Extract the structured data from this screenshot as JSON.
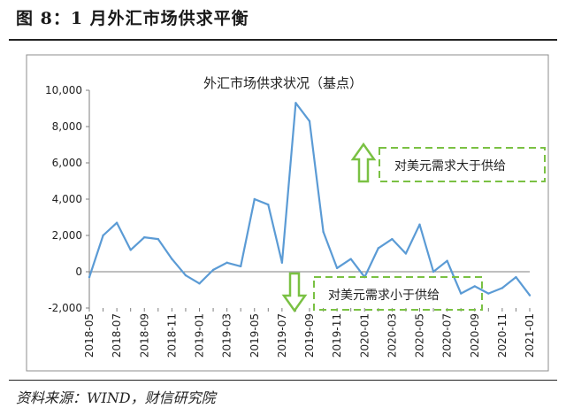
{
  "figure": {
    "title": "图 8：1 月外汇市场供求平衡",
    "source": "资料来源：WIND，财信研究院"
  },
  "colors": {
    "line": "#5b9bd5",
    "annotation": "#7ac143",
    "frame": "#8c8c8c"
  },
  "chart_data": {
    "type": "line",
    "title": "外汇市场供求状况（基点）",
    "xlabel": "",
    "ylabel": "",
    "ylim": [
      -2000,
      10000
    ],
    "yticks": [
      -2000,
      0,
      2000,
      4000,
      6000,
      8000,
      10000
    ],
    "ytick_labels": [
      "-2,000",
      "0",
      "2,000",
      "4,000",
      "6,000",
      "8,000",
      "10,000"
    ],
    "grid": false,
    "x": [
      "2018-05",
      "2018-06",
      "2018-07",
      "2018-08",
      "2018-09",
      "2018-10",
      "2018-11",
      "2018-12",
      "2019-01",
      "2019-02",
      "2019-03",
      "2019-04",
      "2019-05",
      "2019-06",
      "2019-07",
      "2019-08",
      "2019-09",
      "2019-10",
      "2019-11",
      "2019-12",
      "2020-01",
      "2020-02",
      "2020-03",
      "2020-04",
      "2020-05",
      "2020-06",
      "2020-07",
      "2020-08",
      "2020-09",
      "2020-10",
      "2020-11",
      "2020-12",
      "2021-01"
    ],
    "xtick_labels": [
      "2018-05",
      "2018-07",
      "2018-09",
      "2018-11",
      "2019-01",
      "2019-03",
      "2019-05",
      "2019-07",
      "2019-09",
      "2019-11",
      "2020-01",
      "2020-03",
      "2020-05",
      "2020-07",
      "2020-09",
      "2020-11",
      "2021-01"
    ],
    "series": [
      {
        "values": [
          -300,
          2000,
          2700,
          1200,
          1900,
          1800,
          700,
          -200,
          -650,
          100,
          500,
          300,
          4000,
          3700,
          500,
          9300,
          8300,
          2200,
          200,
          700,
          -300,
          1300,
          1800,
          1000,
          2600,
          0,
          600,
          -1200,
          -800,
          -1200,
          -900,
          -300,
          -1300
        ]
      }
    ],
    "annotations": {
      "up": "对美元需求大于供给",
      "down": "对美元需求小于供给"
    }
  }
}
